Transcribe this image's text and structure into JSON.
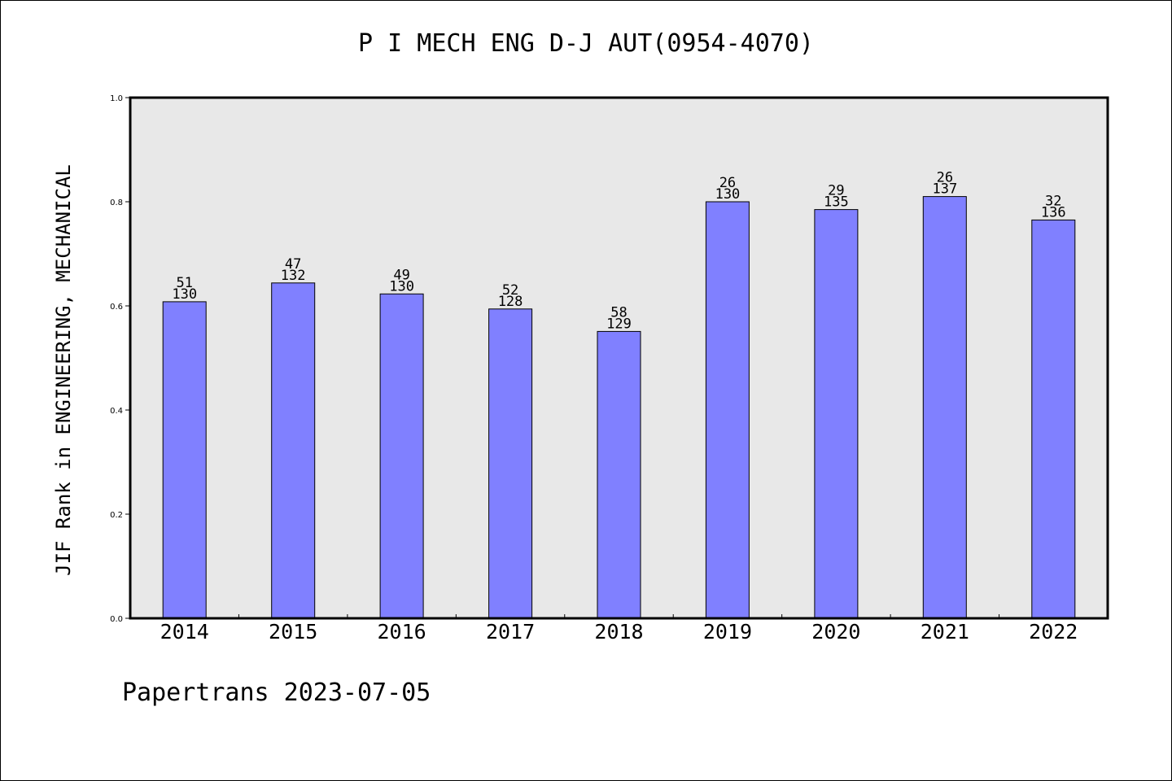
{
  "chart_data": {
    "type": "bar",
    "title": "P I MECH ENG D-J AUT(0954-4070)",
    "xlabel": "",
    "ylabel": "JIF Rank in ENGINEERING, MECHANICAL",
    "categories": [
      "2014",
      "2015",
      "2016",
      "2017",
      "2018",
      "2019",
      "2020",
      "2021",
      "2022"
    ],
    "values": [
      0.608,
      0.644,
      0.623,
      0.594,
      0.551,
      0.8,
      0.785,
      0.81,
      0.765
    ],
    "rank_labels": [
      "51",
      "47",
      "49",
      "52",
      "58",
      "26",
      "29",
      "26",
      "32"
    ],
    "total_labels": [
      "130",
      "132",
      "130",
      "128",
      "129",
      "130",
      "135",
      "137",
      "136"
    ],
    "ylim": [
      0,
      1.0
    ],
    "yticks": [
      "0.0",
      "0.2",
      "0.4",
      "0.6",
      "0.8",
      "1.0"
    ],
    "grid": false,
    "bar_color": "#8080ff",
    "plot_background": "#e8e8e8"
  },
  "footer": "Papertrans 2023-07-05"
}
